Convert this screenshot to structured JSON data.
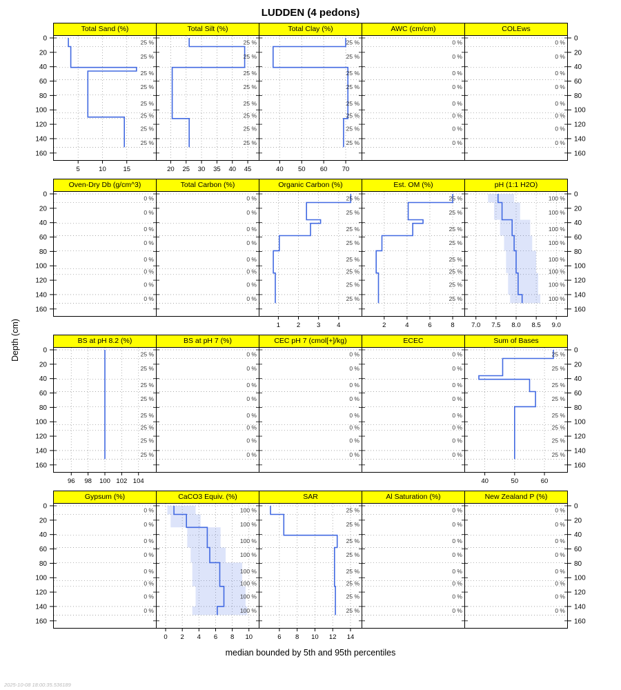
{
  "title": "LUDDEN (4 pedons)",
  "caption": "median bounded by 5th and 95th percentiles",
  "timestamp": "2025-10-08 18:00:35.536189",
  "depth_axis": {
    "label": "Depth (cm)",
    "ticks": [
      0,
      20,
      40,
      60,
      80,
      100,
      120,
      140,
      160
    ],
    "max": 165
  },
  "style": {
    "header_bg": "#ffff00",
    "header_border": "#000000",
    "line_color": "#4169e1",
    "band_color": "rgba(65,105,225,0.18)",
    "grid_color": "#9a9a9a",
    "annotation_color": "#3a3a3a",
    "panel_border": "#000000"
  },
  "chart_data": {
    "type": "line",
    "subtype": "soil-depth-profile-panels",
    "note": "4x5 lattice of step depth profiles; blue line = median, shaded band = 5th-95th percentile, right-edge labels = % of pedons contributing per slab",
    "slab_boundaries": [
      0,
      12,
      41,
      58,
      79,
      104,
      112,
      140,
      152
    ],
    "annotation_depths": [
      6,
      26,
      49,
      68,
      91,
      108,
      126,
      146
    ],
    "rows": [
      {
        "panels": [
          {
            "title": "Total Sand (%)",
            "contrib": "25 %",
            "xlim": [
              1,
              20
            ],
            "xticks": [
              5,
              10,
              15
            ],
            "xtick_labels": [
              "5",
              "10",
              "15"
            ],
            "median": {
              "depths": [
                0,
                12,
                41,
                46,
                110,
                152
              ],
              "values": [
                3,
                3.5,
                17,
                7,
                14.5
              ]
            }
          },
          {
            "title": "Total Silt (%)",
            "contrib": "25 %",
            "xlim": [
              17,
              47
            ],
            "xticks": [
              20,
              25,
              30,
              35,
              40,
              45
            ],
            "xtick_labels": [
              "20",
              "25",
              "30",
              "35",
              "40",
              "45"
            ],
            "median": {
              "depths": [
                0,
                12,
                41,
                112,
                152
              ],
              "values": [
                26,
                44,
                20.5,
                26
              ]
            }
          },
          {
            "title": "Total Clay (%)",
            "contrib": "25 %",
            "xlim": [
              33,
              75
            ],
            "xticks": [
              40,
              50,
              60,
              70
            ],
            "xtick_labels": [
              "40",
              "50",
              "60",
              "70"
            ],
            "median": {
              "depths": [
                0,
                12,
                41,
                112,
                152
              ],
              "values": [
                70,
                37,
                71,
                69
              ]
            }
          },
          {
            "title": "AWC (cm/cm)",
            "contrib": "0 %"
          },
          {
            "title": "COLEws",
            "contrib": "0 %"
          }
        ]
      },
      {
        "panels": [
          {
            "title": "Oven-Dry Db (g/cm^3)",
            "contrib": "0 %"
          },
          {
            "title": "Total Carbon (%)",
            "contrib": "0 %"
          },
          {
            "title": "Organic Carbon (%)",
            "contrib": "25 %",
            "xlim": [
              0.3,
              4.9
            ],
            "xticks": [
              1,
              2,
              3,
              4
            ],
            "xtick_labels": [
              "1",
              "2",
              "3",
              "4"
            ],
            "median": {
              "depths": [
                0,
                12,
                36,
                41,
                58,
                79,
                110,
                152
              ],
              "values": [
                4.6,
                2.4,
                3.1,
                2.6,
                1.05,
                0.75,
                0.85
              ]
            }
          },
          {
            "title": "Est. OM (%)",
            "contrib": "25 %",
            "xlim": [
              0.5,
              8.6
            ],
            "xticks": [
              2,
              4,
              6,
              8
            ],
            "xtick_labels": [
              "2",
              "4",
              "6",
              "8"
            ],
            "median": {
              "depths": [
                0,
                12,
                36,
                41,
                58,
                79,
                110,
                152
              ],
              "values": [
                8,
                4.1,
                5.4,
                4.5,
                1.8,
                1.3,
                1.5
              ]
            }
          },
          {
            "title": "pH (1:1 H2O)",
            "contrib": "100 %",
            "xlim": [
              6.85,
              9.15
            ],
            "xticks": [
              7,
              7.5,
              8,
              8.5,
              9
            ],
            "xtick_labels": [
              "7.0",
              "7.5",
              "8.0",
              "8.5",
              "9.0"
            ],
            "median": {
              "depths": [
                0,
                12,
                36,
                58,
                79,
                110,
                140,
                152
              ],
              "values": [
                7.55,
                7.65,
                7.9,
                7.95,
                8.0,
                8.05,
                8.15
              ]
            },
            "envelope": {
              "low": [
                7.3,
                7.45,
                7.6,
                7.7,
                7.75,
                7.8,
                7.85
              ],
              "high": [
                7.95,
                8.1,
                8.35,
                8.4,
                8.5,
                8.55,
                8.6
              ]
            }
          }
        ]
      },
      {
        "panels": [
          {
            "title": "BS at pH 8.2 (%)",
            "contrib": "25 %",
            "xlim": [
              94.5,
              105.5
            ],
            "xticks": [
              96,
              98,
              100,
              102,
              104
            ],
            "xtick_labels": [
              "96",
              "98",
              "100",
              "102",
              "104"
            ],
            "median": {
              "depths": [
                0,
                152
              ],
              "values": [
                100
              ]
            }
          },
          {
            "title": "BS at pH 7 (%)",
            "contrib": "0 %"
          },
          {
            "title": "CEC pH 7 (cmol[+]/kg)",
            "contrib": "0 %"
          },
          {
            "title": "ECEC",
            "contrib": "0 %"
          },
          {
            "title": "Sum of Bases",
            "contrib": "25 %",
            "xlim": [
              35,
              66
            ],
            "xticks": [
              40,
              50,
              60
            ],
            "xtick_labels": [
              "40",
              "50",
              "60"
            ],
            "median": {
              "depths": [
                0,
                12,
                36,
                41,
                58,
                79,
                152
              ],
              "values": [
                63,
                46,
                38,
                55,
                57,
                50
              ]
            }
          }
        ]
      },
      {
        "panels": [
          {
            "title": "Gypsum (%)",
            "contrib": "0 %"
          },
          {
            "title": "CaCO3 Equiv. (%)",
            "contrib": "100 %",
            "xlim": [
              -0.5,
              10.6
            ],
            "xticks": [
              0,
              2,
              4,
              6,
              8,
              10
            ],
            "xtick_labels": [
              "0",
              "2",
              "4",
              "6",
              "8",
              "10"
            ],
            "median": {
              "depths": [
                0,
                12,
                30,
                58,
                79,
                112,
                140,
                152
              ],
              "values": [
                1,
                2.5,
                5,
                5.3,
                6.5,
                7,
                6.2
              ]
            },
            "envelope": {
              "low": [
                0.2,
                0.6,
                2.6,
                3,
                3.2,
                3.6,
                3.2
              ],
              "high": [
                3.6,
                4.2,
                6.6,
                7.2,
                9.2,
                9.6,
                9.8
              ]
            }
          },
          {
            "title": "SAR",
            "contrib": "25 %",
            "xlim": [
              4.3,
              14.7
            ],
            "xticks": [
              6,
              8,
              10,
              12,
              14
            ],
            "xtick_labels": [
              "6",
              "8",
              "10",
              "12",
              "14"
            ],
            "median": {
              "depths": [
                0,
                12,
                41,
                58,
                112,
                152
              ],
              "values": [
                5,
                6.5,
                12.5,
                12.2,
                12.3
              ]
            }
          },
          {
            "title": "Al Saturation (%)",
            "contrib": "0 %"
          },
          {
            "title": "New Zealand P (%)",
            "contrib": "0 %"
          }
        ]
      }
    ]
  }
}
